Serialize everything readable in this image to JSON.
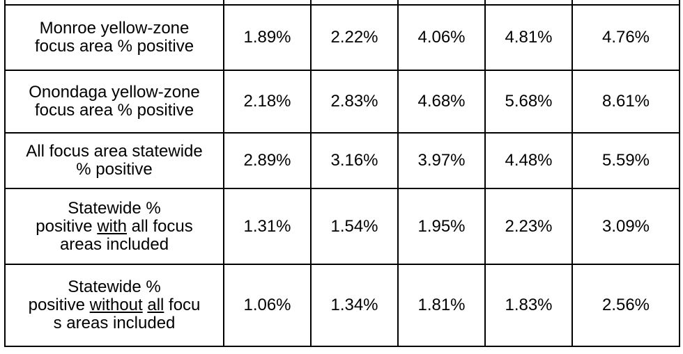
{
  "table": {
    "rows": [
      {
        "label": [
          [
            "Monroe yellow-zone"
          ],
          [
            "focus area % positive"
          ]
        ],
        "cells": [
          "1.89%",
          "2.22%",
          "4.06%",
          "4.81%",
          "4.76%"
        ]
      },
      {
        "label": [
          [
            "Onondaga yellow-zone"
          ],
          [
            "focus area % positive"
          ]
        ],
        "cells": [
          "2.18%",
          "2.83%",
          "4.68%",
          "5.68%",
          "8.61%"
        ]
      },
      {
        "label": [
          [
            "All focus area statewide"
          ],
          [
            "% positive"
          ]
        ],
        "cells": [
          "2.89%",
          "3.16%",
          "3.97%",
          "4.48%",
          "5.59%"
        ]
      },
      {
        "label": [
          [
            "Statewide %"
          ],
          [
            "positive ",
            {
              "text": "with",
              "underline": true
            },
            " all focus"
          ],
          [
            "areas included"
          ]
        ],
        "cells": [
          "1.31%",
          "1.54%",
          "1.95%",
          "2.23%",
          "3.09%"
        ]
      },
      {
        "label": [
          [
            "Statewide %"
          ],
          [
            "positive ",
            {
              "text": "without",
              "underline": true
            },
            " ",
            {
              "text": "all",
              "underline": true
            },
            " focu"
          ],
          [
            "s areas included"
          ]
        ],
        "cells": [
          "1.06%",
          "1.34%",
          "1.81%",
          "1.83%",
          "2.56%"
        ]
      }
    ]
  }
}
